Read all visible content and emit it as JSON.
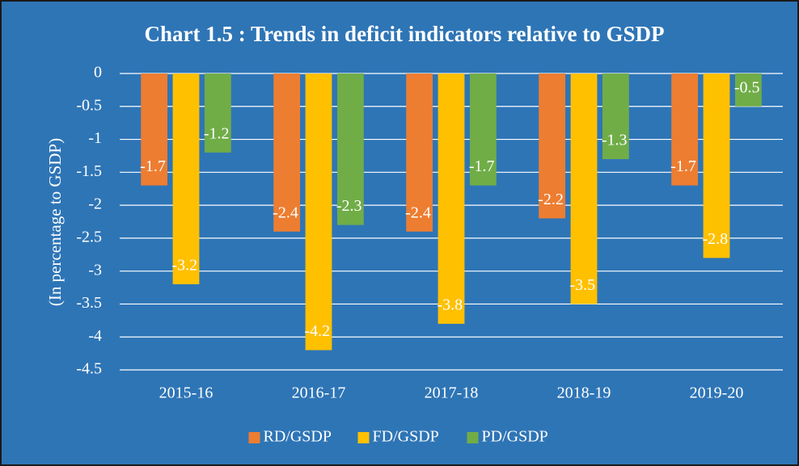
{
  "chart_data": {
    "type": "bar",
    "title": "Chart 1.5 : Trends in deficit indicators relative to GSDP",
    "y_label": "(In percentage to GSDP)",
    "categories": [
      "2015-16",
      "2016-17",
      "2017-18",
      "2018-19",
      "2019-20"
    ],
    "series": [
      {
        "name": "RD/GSDP",
        "color": "#ed7d31",
        "values": [
          -1.7,
          -2.4,
          -2.4,
          -2.2,
          -1.7
        ]
      },
      {
        "name": "FD/GSDP",
        "color": "#ffc000",
        "values": [
          -3.2,
          -4.2,
          -3.8,
          -3.5,
          -2.8
        ]
      },
      {
        "name": "PD/GSDP",
        "color": "#70ad47",
        "values": [
          -1.2,
          -2.3,
          -1.7,
          -1.3,
          -0.5
        ]
      }
    ],
    "ylim": [
      -4.5,
      0
    ],
    "yticks": [
      0,
      -0.5,
      -1,
      -1.5,
      -2,
      -2.5,
      -3,
      -3.5,
      -4,
      -4.5
    ],
    "grid": true,
    "legend": "bottom",
    "background": "#2e75b6"
  }
}
